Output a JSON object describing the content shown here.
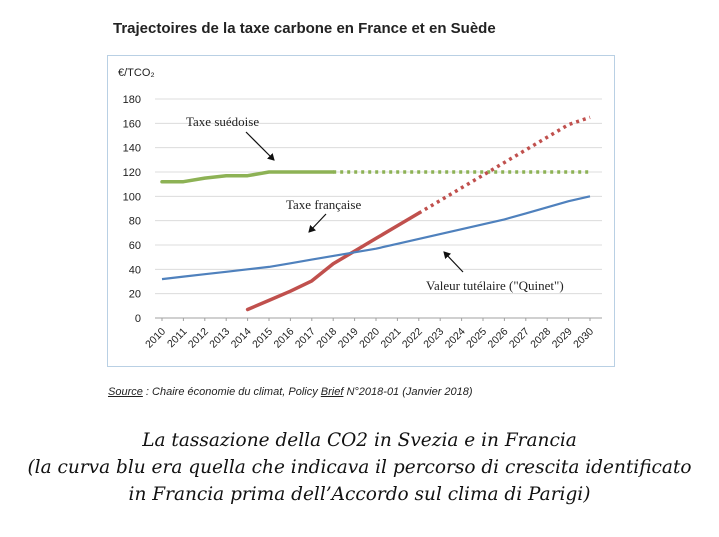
{
  "chart_data": {
    "type": "line",
    "title": "Trajectoires de la taxe carbone en France et en Suède",
    "ylabel": "€/TCO₂",
    "ylim": [
      0,
      180
    ],
    "yticks": [
      0,
      20,
      40,
      60,
      80,
      100,
      120,
      140,
      160,
      180
    ],
    "grid": "horizontal",
    "x": [
      "2010",
      "2011",
      "2012",
      "2013",
      "2014",
      "2015",
      "2016",
      "2017",
      "2018",
      "2019",
      "2020",
      "2021",
      "2022",
      "2023",
      "2024",
      "2025",
      "2026",
      "2027",
      "2028",
      "2029",
      "2030"
    ],
    "series": [
      {
        "name": "Taxe suédoise",
        "color": "#8db255",
        "values": [
          112,
          112,
          115,
          117,
          117,
          120,
          120,
          120,
          120,
          120,
          120,
          120,
          120,
          120,
          120,
          120,
          120,
          120,
          120,
          120,
          120
        ],
        "dashed_from": "2018"
      },
      {
        "name": "Taxe française",
        "color": "#c0504d",
        "values": [
          null,
          null,
          null,
          null,
          7,
          14.5,
          22,
          30.5,
          44.6,
          55,
          65.4,
          75.8,
          86.2,
          96.6,
          107,
          117.4,
          127.8,
          138.2,
          148.6,
          159,
          165
        ],
        "dashed_from": "2022"
      },
      {
        "name": "Valeur tutélaire (\"Quinet\")",
        "color": "#4f81bd",
        "values": [
          32,
          34,
          36,
          38,
          40,
          42,
          45,
          48,
          51,
          54,
          57,
          61,
          65,
          69,
          73,
          77,
          81,
          86,
          91,
          96,
          100
        ]
      }
    ],
    "annotations": [
      {
        "text": "Taxe suédoise",
        "points_to": "Taxe suédoise"
      },
      {
        "text": "Taxe française",
        "points_to": "Taxe française"
      },
      {
        "text": "Valeur tutélaire (\"Quinet\")",
        "points_to": "Valeur tutélaire (\"Quinet\")"
      }
    ]
  },
  "source": {
    "label": "Source",
    "text_before": " : Chaire économie du climat, Policy ",
    "brief": "Brief",
    "text_after": " N°2018-01 (Janvier 2018)"
  },
  "caption": {
    "line1": "La  tassazione della CO2 in Svezia e in Francia",
    "line2": "(la curva blu era quella che indicava il percorso di crescita identificato",
    "line3": "in Francia prima dell’Accordo sul clima di Parigi)"
  }
}
